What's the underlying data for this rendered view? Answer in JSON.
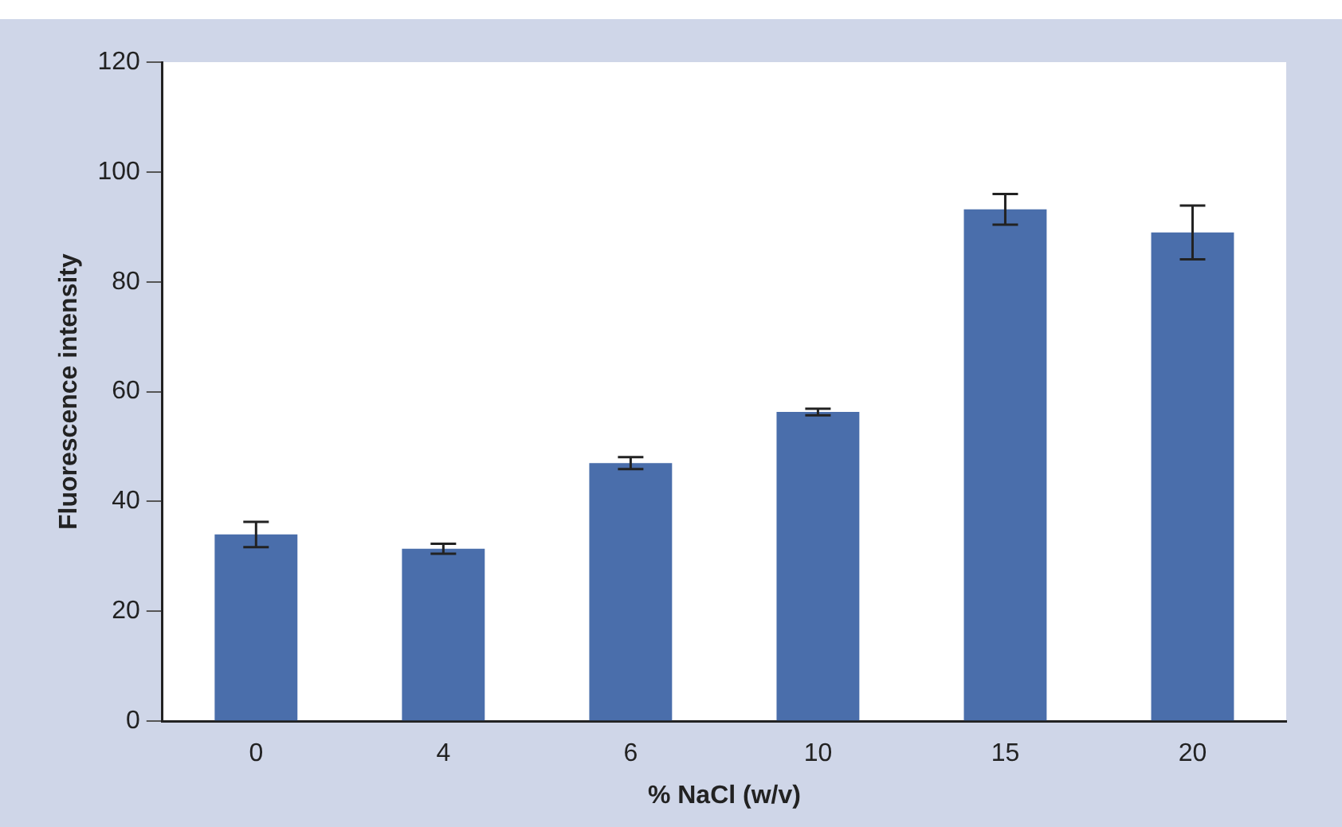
{
  "chart_data": {
    "type": "bar",
    "xlabel": "% NaCl (w/v)",
    "ylabel": "Fluorescence intensity",
    "categories": [
      "0",
      "4",
      "6",
      "10",
      "15",
      "20"
    ],
    "values": [
      34,
      31.4,
      47,
      56.3,
      93.2,
      89
    ],
    "errors": [
      2.3,
      0.9,
      1.1,
      0.6,
      2.8,
      4.9
    ],
    "color": "#4a6eab",
    "ylim": [
      0,
      120
    ],
    "yticks": [
      0,
      20,
      40,
      60,
      80,
      100,
      120
    ],
    "grid": false,
    "legend": false
  }
}
